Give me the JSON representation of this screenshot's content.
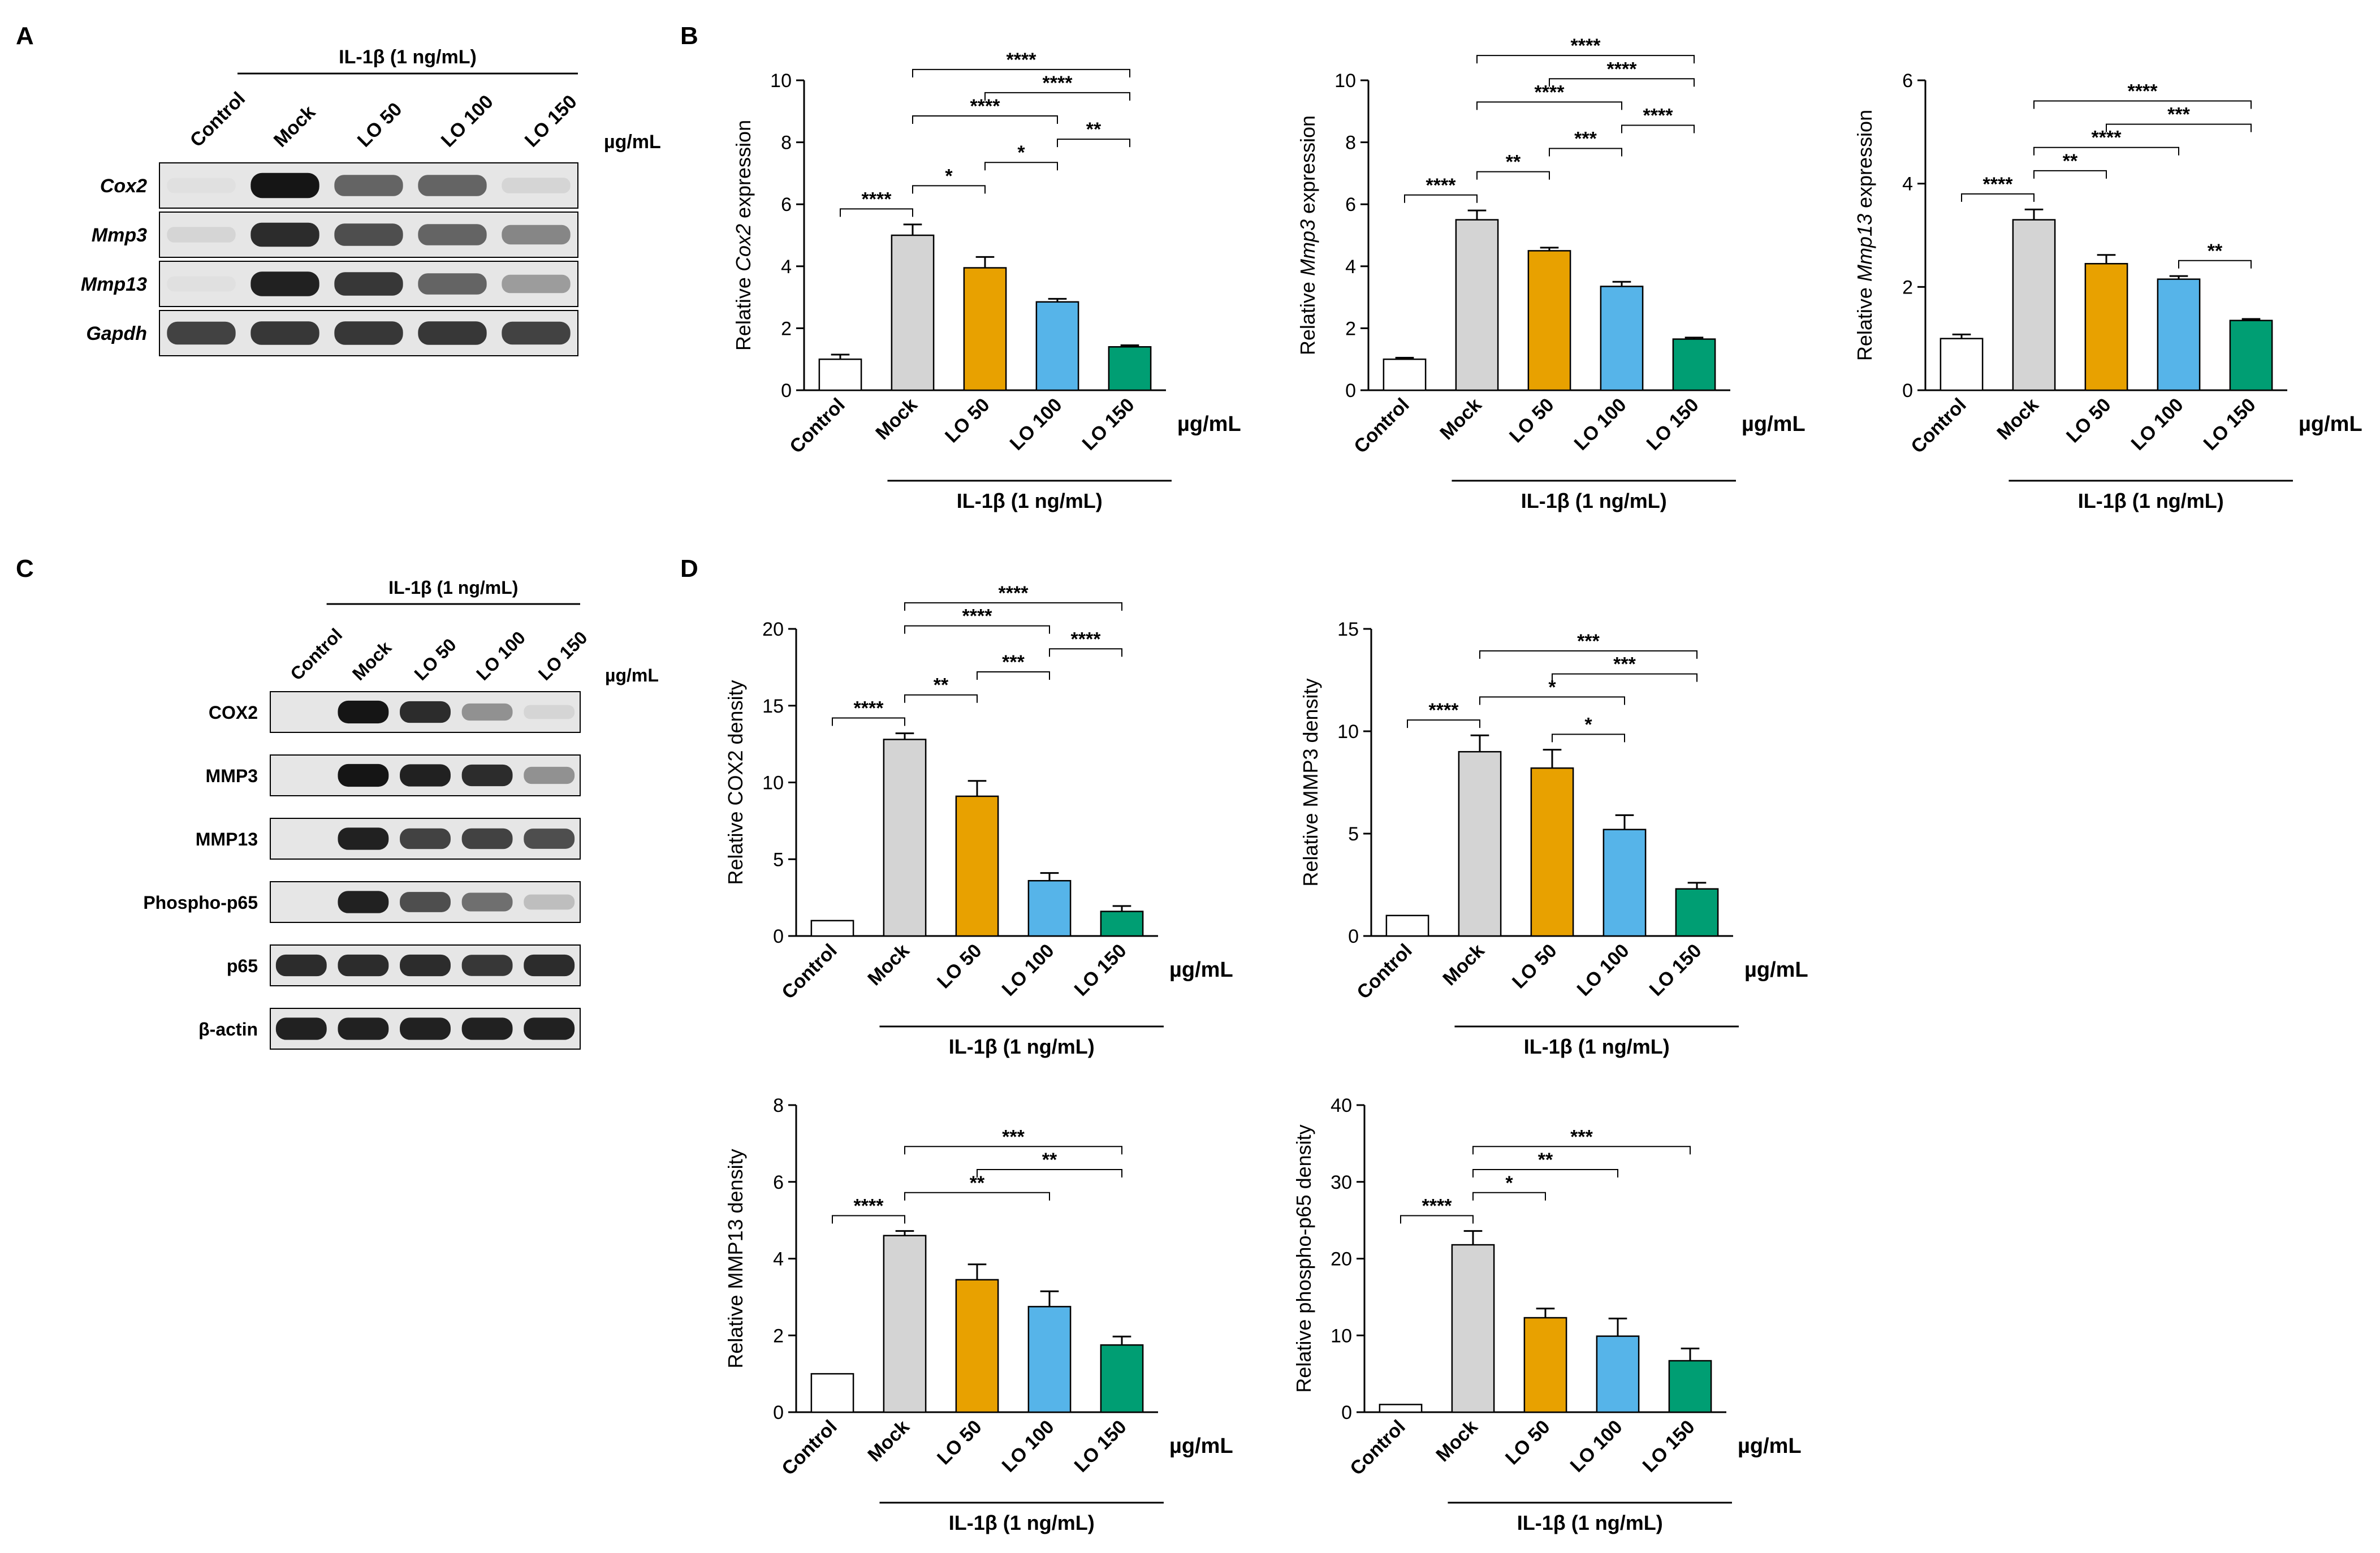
{
  "panel_letters": {
    "a": "A",
    "b": "B",
    "c": "C",
    "d": "D"
  },
  "unit": "µg/mL",
  "treatment_label": "IL-1β (1 ng/mL)",
  "lanes": [
    "Control",
    "Mock",
    "LO 50",
    "LO 100",
    "LO 150"
  ],
  "colors": {
    "control": "#ffffff",
    "mock": "#d4d4d4",
    "lo50": "#e8a100",
    "lo100": "#56b4e9",
    "lo150": "#009e73"
  },
  "panel_a": {
    "genes": [
      "Cox2",
      "Mmp3",
      "Mmp13",
      "Gapdh"
    ],
    "band_intensity": [
      [
        0.05,
        0.95,
        0.6,
        0.6,
        0.1
      ],
      [
        0.1,
        0.85,
        0.7,
        0.6,
        0.45
      ],
      [
        0.05,
        0.9,
        0.8,
        0.6,
        0.35
      ],
      [
        0.75,
        0.8,
        0.8,
        0.8,
        0.75
      ]
    ]
  },
  "panel_c": {
    "proteins": [
      "COX2",
      "MMP3",
      "MMP13",
      "Phospho-p65",
      "p65",
      "β-actin"
    ],
    "band_intensity": [
      [
        0.0,
        0.95,
        0.85,
        0.4,
        0.1
      ],
      [
        0.0,
        0.95,
        0.9,
        0.85,
        0.4
      ],
      [
        0.0,
        0.9,
        0.75,
        0.75,
        0.7
      ],
      [
        0.0,
        0.9,
        0.7,
        0.55,
        0.2
      ],
      [
        0.85,
        0.85,
        0.85,
        0.8,
        0.85
      ],
      [
        0.9,
        0.9,
        0.9,
        0.9,
        0.9
      ]
    ]
  },
  "chart_data": [
    {
      "type": "bar",
      "panel": "B",
      "ylabel_pre": "Relative ",
      "ylabel_ital": "Cox2",
      "ylabel_post": " expression",
      "ylim": [
        0,
        10
      ],
      "yticks": [
        0,
        2,
        4,
        6,
        8,
        10
      ],
      "categories": [
        "Control",
        "Mock",
        "LO 50",
        "LO 100",
        "LO 150"
      ],
      "values": [
        1,
        5,
        3.95,
        2.85,
        1.4
      ],
      "errors": [
        0.15,
        0.35,
        0.35,
        0.1,
        0.05
      ],
      "sig": [
        {
          "a": 0,
          "b": 1,
          "label": "****"
        },
        {
          "a": 1,
          "b": 2,
          "label": "*"
        },
        {
          "a": 2,
          "b": 3,
          "label": "*"
        },
        {
          "a": 3,
          "b": 4,
          "label": "**"
        },
        {
          "a": 1,
          "b": 3,
          "label": "****"
        },
        {
          "a": 2,
          "b": 4,
          "label": "****"
        },
        {
          "a": 1,
          "b": 4,
          "label": "****"
        }
      ]
    },
    {
      "type": "bar",
      "panel": "B",
      "ylabel_pre": "Relative ",
      "ylabel_ital": "Mmp3",
      "ylabel_post": " expression",
      "ylim": [
        0,
        10
      ],
      "yticks": [
        0,
        2,
        4,
        6,
        8,
        10
      ],
      "categories": [
        "Control",
        "Mock",
        "LO 50",
        "LO 100",
        "LO 150"
      ],
      "values": [
        1,
        5.5,
        4.5,
        3.35,
        1.65
      ],
      "errors": [
        0.05,
        0.3,
        0.1,
        0.15,
        0.05
      ],
      "sig": [
        {
          "a": 0,
          "b": 1,
          "label": "****"
        },
        {
          "a": 1,
          "b": 2,
          "label": "**"
        },
        {
          "a": 2,
          "b": 3,
          "label": "***"
        },
        {
          "a": 3,
          "b": 4,
          "label": "****"
        },
        {
          "a": 1,
          "b": 3,
          "label": "****"
        },
        {
          "a": 2,
          "b": 4,
          "label": "****"
        },
        {
          "a": 1,
          "b": 4,
          "label": "****"
        }
      ]
    },
    {
      "type": "bar",
      "panel": "B",
      "ylabel_pre": "Relative ",
      "ylabel_ital": "Mmp13",
      "ylabel_post": " expression",
      "ylim": [
        0,
        6
      ],
      "yticks": [
        0,
        2,
        4,
        6
      ],
      "categories": [
        "Control",
        "Mock",
        "LO 50",
        "LO 100",
        "LO 150"
      ],
      "values": [
        1,
        3.3,
        2.45,
        2.15,
        1.35
      ],
      "errors": [
        0.08,
        0.2,
        0.17,
        0.06,
        0.03
      ],
      "sig": [
        {
          "a": 0,
          "b": 1,
          "label": "****"
        },
        {
          "a": 1,
          "b": 2,
          "label": "**"
        },
        {
          "a": 3,
          "b": 4,
          "label": "**"
        },
        {
          "a": 1,
          "b": 3,
          "label": "****"
        },
        {
          "a": 2,
          "b": 4,
          "label": "***"
        },
        {
          "a": 1,
          "b": 4,
          "label": "****"
        }
      ]
    },
    {
      "type": "bar",
      "panel": "D",
      "ylabel_pre": "Relative COX2 density",
      "ylabel_ital": "",
      "ylabel_post": "",
      "ylim": [
        0,
        20
      ],
      "yticks": [
        0,
        5,
        10,
        15,
        20
      ],
      "categories": [
        "Control",
        "Mock",
        "LO 50",
        "LO 100",
        "LO 150"
      ],
      "values": [
        1,
        12.8,
        9.1,
        3.6,
        1.6
      ],
      "errors": [
        0,
        0.4,
        1.0,
        0.5,
        0.35
      ],
      "sig": [
        {
          "a": 0,
          "b": 1,
          "label": "****"
        },
        {
          "a": 1,
          "b": 2,
          "label": "**"
        },
        {
          "a": 2,
          "b": 3,
          "label": "***"
        },
        {
          "a": 1,
          "b": 3,
          "label": "****"
        },
        {
          "a": 3,
          "b": 4,
          "label": "****"
        },
        {
          "a": 1,
          "b": 4,
          "label": "****"
        }
      ]
    },
    {
      "type": "bar",
      "panel": "D",
      "ylabel_pre": "Relative MMP3 density",
      "ylabel_ital": "",
      "ylabel_post": "",
      "ylim": [
        0,
        15
      ],
      "yticks": [
        0,
        5,
        10,
        15
      ],
      "categories": [
        "Control",
        "Mock",
        "LO 50",
        "LO 100",
        "LO 150"
      ],
      "values": [
        1,
        9,
        8.2,
        5.2,
        2.3
      ],
      "errors": [
        0,
        0.8,
        0.9,
        0.7,
        0.3
      ],
      "sig": [
        {
          "a": 0,
          "b": 1,
          "label": "****"
        },
        {
          "a": 2,
          "b": 3,
          "label": "*"
        },
        {
          "a": 1,
          "b": 3,
          "label": "*"
        },
        {
          "a": 2,
          "b": 4,
          "label": "***"
        },
        {
          "a": 1,
          "b": 4,
          "label": "***"
        }
      ]
    },
    {
      "type": "bar",
      "panel": "D",
      "ylabel_pre": "Relative MMP13 density",
      "ylabel_ital": "",
      "ylabel_post": "",
      "ylim": [
        0,
        8
      ],
      "yticks": [
        0,
        2,
        4,
        6,
        8
      ],
      "categories": [
        "Control",
        "Mock",
        "LO 50",
        "LO 100",
        "LO 150"
      ],
      "values": [
        1,
        4.6,
        3.45,
        2.75,
        1.75
      ],
      "errors": [
        0,
        0.12,
        0.4,
        0.4,
        0.22
      ],
      "sig": [
        {
          "a": 0,
          "b": 1,
          "label": "****"
        },
        {
          "a": 1,
          "b": 3,
          "label": "**"
        },
        {
          "a": 2,
          "b": 4,
          "label": "**"
        },
        {
          "a": 1,
          "b": 4,
          "label": "***"
        }
      ]
    },
    {
      "type": "bar",
      "panel": "D",
      "ylabel_pre": "Relative phospho-p65 density",
      "ylabel_ital": "",
      "ylabel_post": "",
      "ylim": [
        0,
        40
      ],
      "yticks": [
        0,
        10,
        20,
        30,
        40
      ],
      "categories": [
        "Control",
        "Mock",
        "LO 50",
        "LO 100",
        "LO 150"
      ],
      "values": [
        1,
        21.8,
        12.3,
        9.9,
        6.7
      ],
      "errors": [
        0,
        1.8,
        1.2,
        2.3,
        1.6
      ],
      "sig": [
        {
          "a": 0,
          "b": 1,
          "label": "****"
        },
        {
          "a": 1,
          "b": 2,
          "label": "*"
        },
        {
          "a": 1,
          "b": 3,
          "label": "**"
        },
        {
          "a": 1,
          "b": 4,
          "label": "***"
        }
      ]
    }
  ]
}
